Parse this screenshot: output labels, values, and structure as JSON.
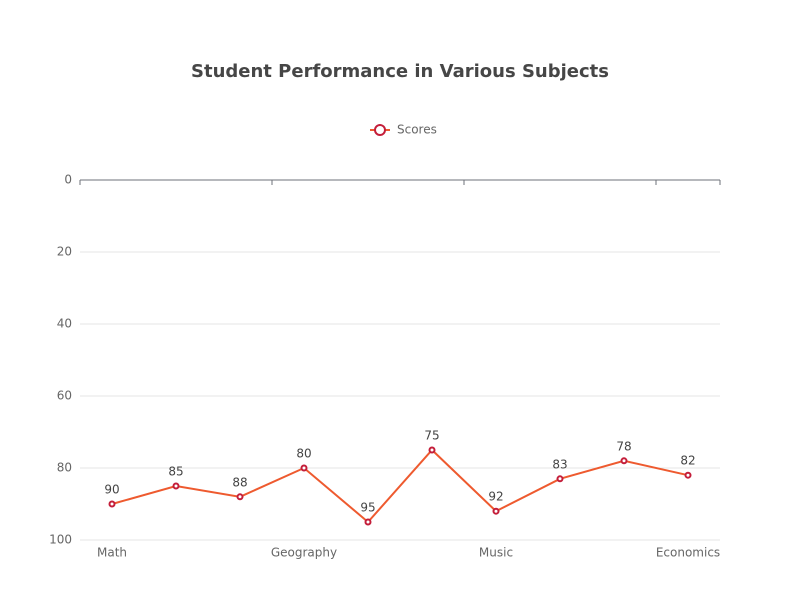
{
  "chart_data": {
    "type": "line",
    "title": "Student Performance in Various Subjects",
    "categories": [
      "Math",
      null,
      null,
      "Geography",
      null,
      null,
      "Music",
      null,
      null,
      "Economics"
    ],
    "series": [
      {
        "name": "Scores",
        "color": "#ee5a2f",
        "marker_color": "#c41e3a",
        "values": [
          90,
          85,
          88,
          80,
          95,
          75,
          92,
          83,
          78,
          82
        ]
      }
    ],
    "ylim": [
      0,
      100
    ],
    "yticks": [
      0,
      20,
      40,
      60,
      80,
      100
    ],
    "y_inverted": true,
    "grid": true,
    "legend": "top"
  }
}
